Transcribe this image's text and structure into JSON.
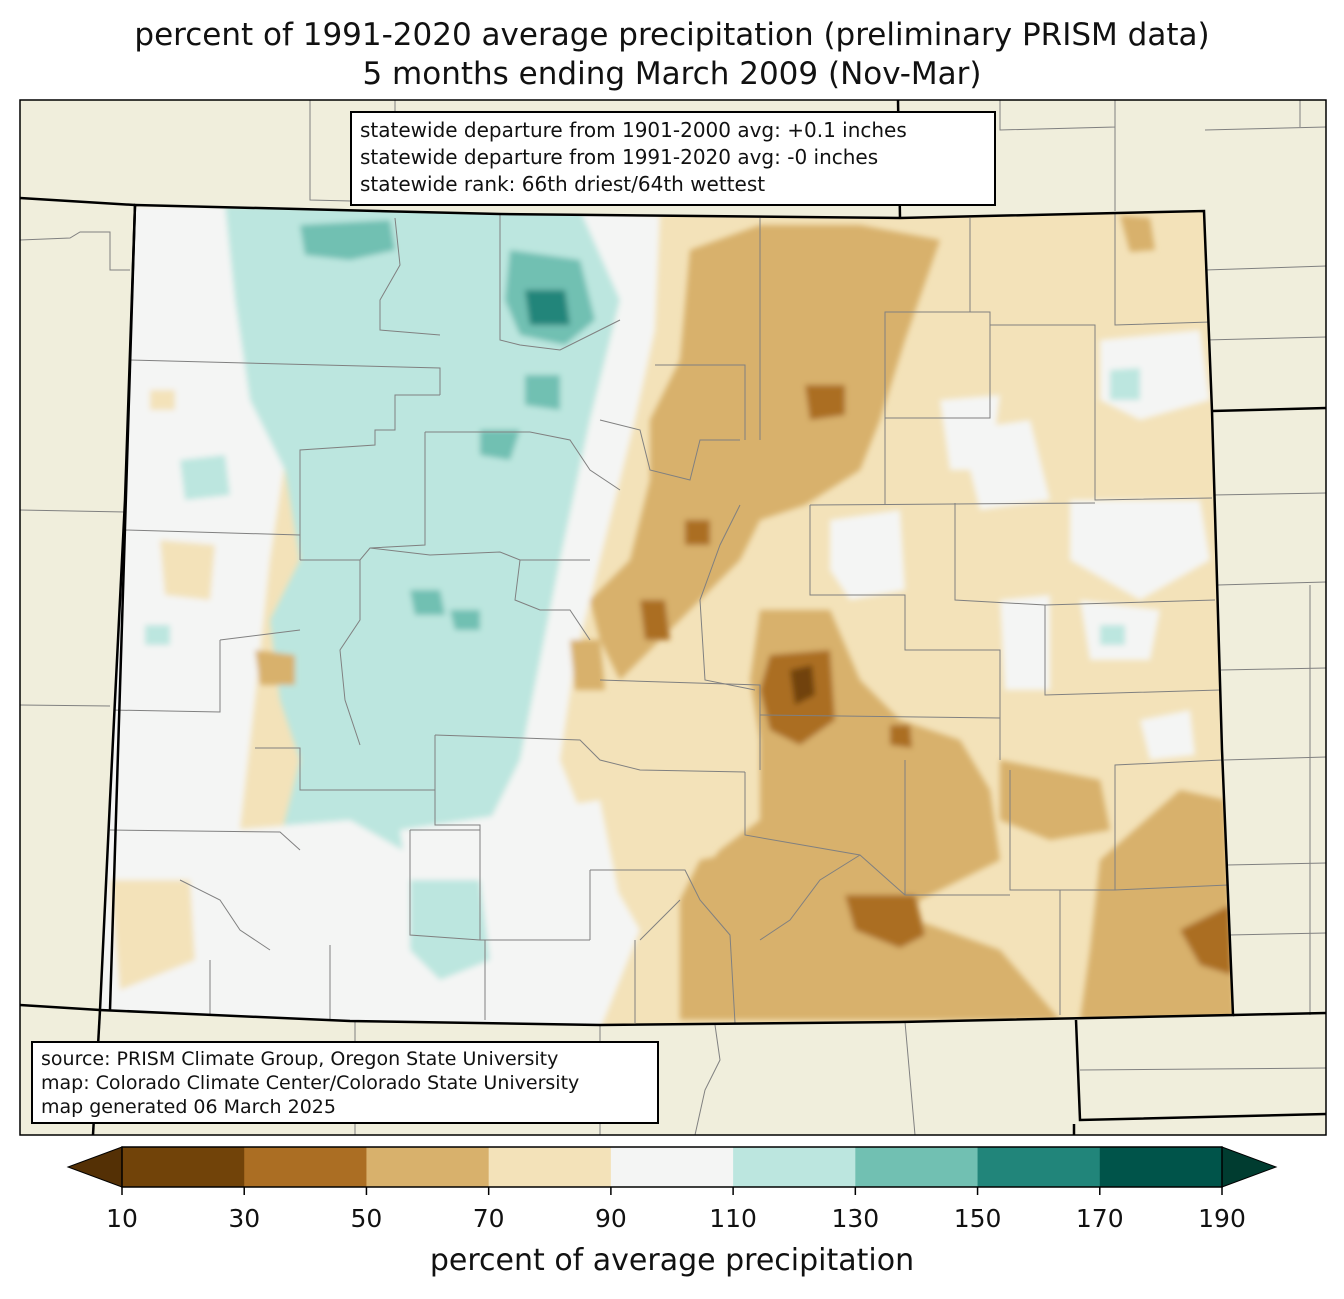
{
  "header": {
    "title_line1": "percent of 1991-2020 average precipitation (preliminary PRISM data)",
    "title_line2": "5 months ending March 2009 (Nov-Mar)"
  },
  "stats_box": {
    "line1": "statewide departure from 1901-2000 avg: +0.1 inches",
    "line2": "statewide departure from 1991-2020 avg: -0 inches",
    "line3": "statewide rank: 66th driest/64th wettest"
  },
  "source_box": {
    "line1": "source: PRISM Climate Group, Oregon State University",
    "line2": "map: Colorado Climate Center/Colorado State University",
    "line3": "map generated 06 March 2025"
  },
  "colorbar": {
    "label": "percent of average precipitation",
    "ticks": [
      "10",
      "30",
      "50",
      "70",
      "90",
      "110",
      "130",
      "150",
      "170",
      "190"
    ],
    "bin_colors": [
      "#714309",
      "#ab6e23",
      "#d8b16c",
      "#f3e2b9",
      "#f4f5f4",
      "#bce6df",
      "#71c0b2",
      "#21857a",
      "#00544a"
    ],
    "under_color": "#543005",
    "over_color": "#003c30"
  },
  "map_colors": {
    "background_land": "#f0eedc",
    "state_border": "#000000",
    "county_border": "#808080"
  }
}
